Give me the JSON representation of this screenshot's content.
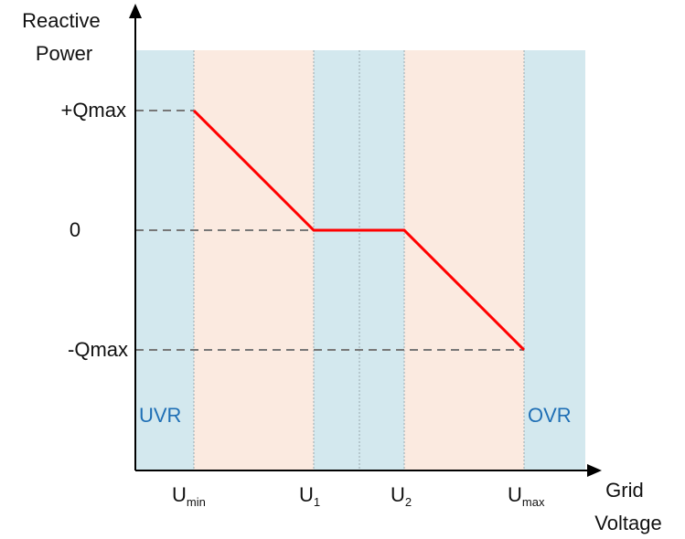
{
  "y_axis_label": {
    "line1": "Reactive",
    "line2": "Power"
  },
  "x_axis_label": {
    "line1": "Grid",
    "line2": "Voltage"
  },
  "y_ticks": {
    "q_max_pos": "+Qmax",
    "zero": "0",
    "q_max_neg": "-Qmax"
  },
  "x_ticks": [
    {
      "main": "U",
      "sub": "min"
    },
    {
      "main": "U",
      "sub": "1"
    },
    {
      "main": "U",
      "sub": "2"
    },
    {
      "main": "U",
      "sub": "max"
    }
  ],
  "regions": {
    "uvr": "UVR",
    "ovr": "OVR"
  },
  "colors": {
    "blue_zone": "#d3e8ee",
    "peach_zone": "#fbeae0",
    "curve": "#ff0000",
    "region_text": "#1f6fb5",
    "guide": "#777777",
    "axis": "#000000"
  },
  "chart_data": {
    "type": "line",
    "x": [
      "U_min",
      "U_1",
      "U_2",
      "U_max"
    ],
    "y": [
      "+Qmax",
      "0",
      "0",
      "-Qmax"
    ]
  }
}
